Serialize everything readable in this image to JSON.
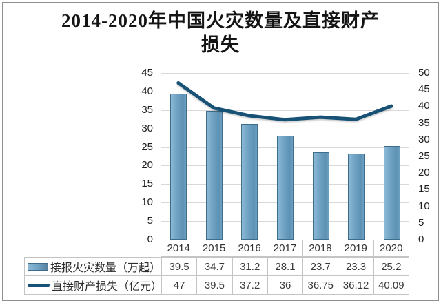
{
  "title": {
    "full": "2014-2020年中国火灾数量及直接财产损失",
    "lines": [
      "2014-2020年中国火灾数量及直接财产",
      "损失"
    ]
  },
  "chart_data": {
    "type": "combo-bar-line",
    "title": "2014-2020年中国火灾数量及直接财产损失",
    "categories": [
      "2014",
      "2015",
      "2016",
      "2017",
      "2018",
      "2019",
      "2020"
    ],
    "series": [
      {
        "name": "接报火灾数量（万起）",
        "type": "bar",
        "axis": "left",
        "values": [
          39.5,
          34.7,
          31.2,
          28.1,
          23.7,
          23.3,
          25.2
        ]
      },
      {
        "name": "直接财产损失（亿元）",
        "type": "line",
        "axis": "right",
        "values": [
          47,
          39.5,
          37.2,
          36,
          36.75,
          36.12,
          40.09
        ]
      }
    ],
    "left_axis": {
      "min": 0,
      "max": 45,
      "step": 5
    },
    "right_axis": {
      "min": 0,
      "max": 50,
      "step": 5
    },
    "grid": true,
    "legend_position": "bottom-data-table"
  },
  "colors": {
    "bar_fill_light": "#8cb9d6",
    "bar_fill_mid": "#6da0c1",
    "bar_fill_dark": "#567f9d",
    "bar_border": "#3e6d8b",
    "line": "#175276",
    "grid": "#d9d9d9",
    "table_border": "#c4c4c4",
    "axis_text": "#1f1f1f",
    "table_text": "#3a3a3a",
    "title_text": "#141414",
    "frame_border": "#8e8e8e"
  }
}
